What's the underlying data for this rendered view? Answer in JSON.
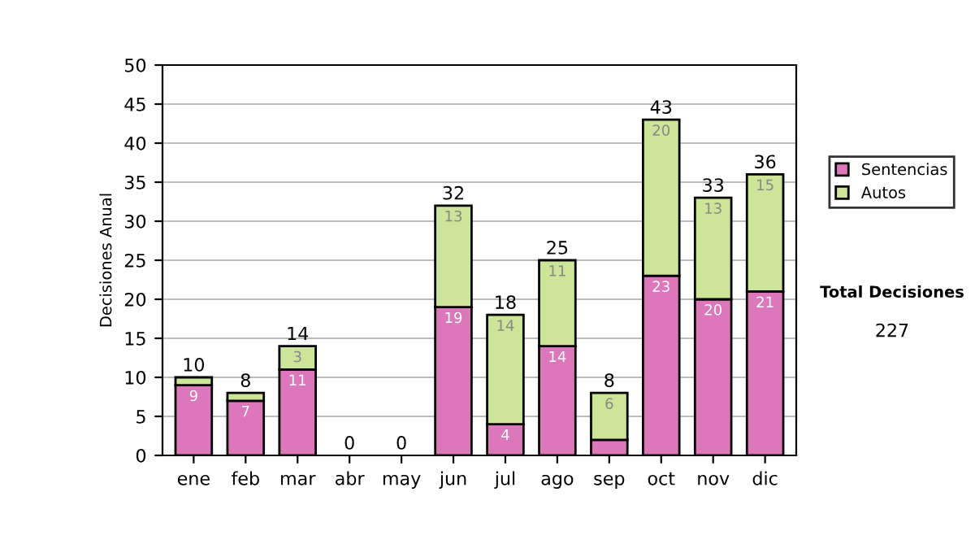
{
  "chart_data": {
    "type": "bar",
    "stacked": true,
    "ylabel": "Decisiones Anual",
    "categories": [
      "ene",
      "feb",
      "mar",
      "abr",
      "may",
      "jun",
      "jul",
      "ago",
      "sep",
      "oct",
      "nov",
      "dic"
    ],
    "series": [
      {
        "name": "Sentencias",
        "color": "#dd77bb",
        "values": [
          9,
          7,
          11,
          0,
          0,
          19,
          4,
          14,
          2,
          23,
          20,
          21
        ],
        "value_labels": [
          "9",
          "7",
          "11",
          null,
          null,
          "19",
          "4",
          "14",
          null,
          "23",
          "20",
          "21"
        ]
      },
      {
        "name": "Autos",
        "color": "#cce599",
        "values": [
          1,
          1,
          3,
          0,
          0,
          13,
          14,
          11,
          6,
          20,
          13,
          15
        ],
        "value_labels": [
          null,
          null,
          "3",
          null,
          null,
          "13",
          "14",
          "11",
          "6",
          "20",
          "13",
          "15"
        ]
      }
    ],
    "totals": [
      "10",
      "8",
      "14",
      "0",
      "0",
      "32",
      "18",
      "25",
      "8",
      "43",
      "33",
      "36"
    ],
    "ylim": [
      0,
      50
    ],
    "yticks": [
      0,
      5,
      10,
      15,
      20,
      25,
      30,
      35,
      40,
      45,
      50
    ],
    "grid": "y",
    "legend": "right",
    "annotations": [
      "Total Decisiones",
      "227"
    ]
  }
}
